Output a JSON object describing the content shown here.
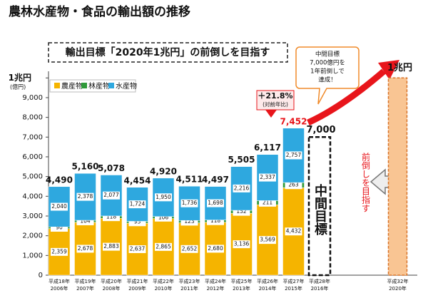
{
  "chart_data": {
    "type": "bar",
    "stacked": true,
    "title": "農林水産物・食品の輸出額の推移",
    "banner": "輸出目標「2020年1兆円」の前倒しを目指す",
    "y_unit": "(億円)",
    "categories": [
      [
        "平成18年",
        "2006年"
      ],
      [
        "平成19年",
        "2007年"
      ],
      [
        "平成20年",
        "2008年"
      ],
      [
        "平成21年",
        "2009年"
      ],
      [
        "平成22年",
        "2010年"
      ],
      [
        "平成23年",
        "2011年"
      ],
      [
        "平成24年",
        "2012年"
      ],
      [
        "平成25年",
        "2013年"
      ],
      [
        "平成26年",
        "2014年"
      ],
      [
        "平成27年",
        "2015年"
      ],
      [
        "平成28年",
        "2016年"
      ],
      null,
      null,
      [
        "平成32年",
        "2020年"
      ]
    ],
    "series": [
      {
        "name": "農産物",
        "color": "#f5b400",
        "values": [
          2359,
          2678,
          2883,
          2637,
          2865,
          2652,
          2680,
          3136,
          3569,
          4432,
          null,
          null,
          null,
          null
        ],
        "value_labels": [
          "2,359",
          "2,678",
          "2,883",
          "2,637",
          "2,865",
          "2,652",
          "2,680",
          "3,136",
          "3,569",
          "4,432",
          null,
          null,
          null,
          null
        ]
      },
      {
        "name": "林産物",
        "color": "#2f9a3a",
        "values": [
          90,
          104,
          118,
          93,
          106,
          123,
          118,
          152,
          211,
          263,
          null,
          null,
          null,
          null
        ],
        "value_labels": [
          "90",
          "104",
          "118",
          "93",
          "106",
          "123",
          "118",
          "152",
          "211",
          "263",
          null,
          null,
          null,
          null
        ]
      },
      {
        "name": "水産物",
        "color": "#2ea8df",
        "values": [
          2040,
          2378,
          2077,
          1724,
          1950,
          1736,
          1698,
          2216,
          2337,
          2757,
          null,
          null,
          null,
          null
        ],
        "value_labels": [
          "2,040",
          "2,378",
          "2,077",
          "1,724",
          "1,950",
          "1,736",
          "1,698",
          "2,216",
          "2,337",
          "2,757",
          null,
          null,
          null,
          null
        ]
      }
    ],
    "totals": {
      "values": [
        4490,
        5160,
        5078,
        4454,
        4920,
        4511,
        4497,
        5505,
        6117,
        7452,
        null,
        null,
        null,
        null
      ],
      "value_labels": [
        "4,490",
        "5,160",
        "5,078",
        "4,454",
        "4,920",
        "4,511",
        "4,497",
        "5,505",
        "6,117",
        "7,452",
        null,
        null,
        null,
        null
      ]
    },
    "targets": {
      "values": [
        null,
        null,
        null,
        null,
        null,
        null,
        null,
        null,
        null,
        null,
        7000,
        null,
        null,
        10000
      ],
      "value_labels": [
        null,
        null,
        null,
        null,
        null,
        null,
        null,
        null,
        null,
        null,
        "7,000",
        null,
        null,
        "1兆円"
      ]
    },
    "target_text": "中間目標",
    "arrow_text": "前倒しを目指す",
    "callout": [
      "中間目標",
      "7,000億円を",
      "1年前倒しで",
      "達成！"
    ],
    "growth": [
      "＋21.8%",
      "(対前年比)"
    ],
    "ylim": [
      0,
      10000
    ],
    "yticks": [
      0,
      {
        "value": 1000,
        "label": "1,000"
      },
      {
        "value": 2000,
        "label": "2,000"
      },
      {
        "value": 3000,
        "label": "3,000"
      },
      {
        "value": 4000,
        "label": "4,000"
      },
      {
        "value": 5000,
        "label": "5,000"
      },
      {
        "value": 6000,
        "label": "6,000"
      },
      {
        "value": 7000,
        "label": "7,000"
      },
      {
        "value": 8000,
        "label": "8,000"
      },
      {
        "value": 9000,
        "label": "9,000"
      },
      {
        "value": 10000,
        "label": "1兆円"
      }
    ],
    "legend": "upper left"
  }
}
